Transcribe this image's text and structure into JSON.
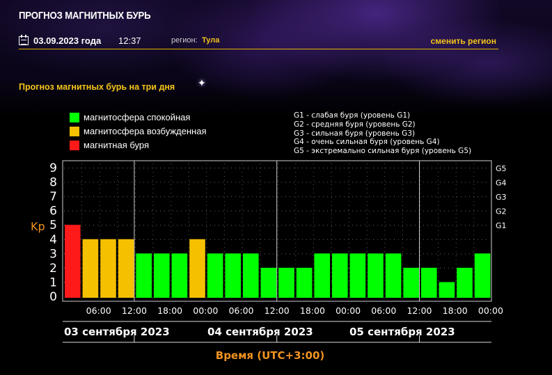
{
  "header": {
    "site_title": "ПРОГНОЗ МАГНИТНЫХ БУРЬ",
    "date": "03.09.2023 года",
    "time": "12:37",
    "region_label": "регион:",
    "region_value": "Тула",
    "change_region": "сменить регион"
  },
  "section_title": "Прогноз магнитных бурь на три дня",
  "legend": [
    {
      "label": "магнитосфера спокойная",
      "color": "#00ff00"
    },
    {
      "label": "магнитосфера возбужденная",
      "color": "#f5c000"
    },
    {
      "label": "магнитная буря",
      "color": "#ff1a1a"
    }
  ],
  "g_legend": [
    "G1 - слабая буря (уровень G1)",
    "G2 - средняя буря (уровень G2)",
    "G3 - сильная буря (уровень G3)",
    "G4 - очень сильная буря (уровень G4)",
    "G5 - экстремально сильная буря (уровень G5)"
  ],
  "chart_data": {
    "type": "bar",
    "ylabel": "Kp",
    "xlabel": "Время (UTC+3:00)",
    "ylim": [
      0,
      9
    ],
    "yticks": [
      0,
      1,
      2,
      3,
      4,
      5,
      6,
      7,
      8,
      9
    ],
    "right_axis": [
      {
        "label": "G1",
        "value": 5
      },
      {
        "label": "G2",
        "value": 6
      },
      {
        "label": "G3",
        "value": 7
      },
      {
        "label": "G4",
        "value": 8
      },
      {
        "label": "G5",
        "value": 9
      }
    ],
    "xticks": [
      "06:00",
      "12:00",
      "18:00",
      "00:00",
      "06:00",
      "12:00",
      "18:00",
      "00:00",
      "06:00",
      "12:00",
      "18:00",
      "00:00"
    ],
    "days": [
      "03 сентября 2023",
      "04 сентября 2023",
      "05 сентября 2023"
    ],
    "values": [
      5,
      4,
      4,
      4,
      3,
      3,
      3,
      4,
      3,
      3,
      3,
      2,
      2,
      2,
      3,
      3,
      3,
      3,
      3,
      2,
      2,
      1,
      2,
      3
    ],
    "colors": {
      "quiet": "#00ff00",
      "active": "#f5c000",
      "storm": "#ff1a1a"
    },
    "grid": true
  }
}
